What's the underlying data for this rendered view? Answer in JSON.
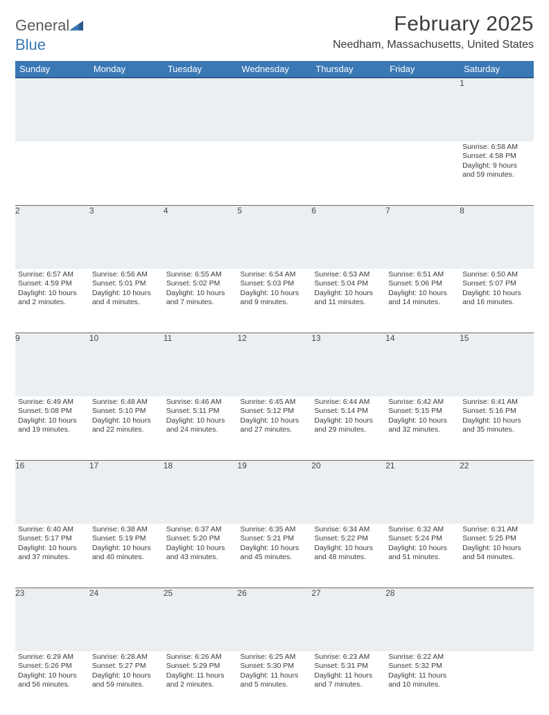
{
  "logo": {
    "general": "General",
    "blue": "Blue"
  },
  "title": "February 2025",
  "location": "Needham, Massachusetts, United States",
  "colors": {
    "header_bg": "#3a78b5",
    "header_text": "#ffffff",
    "daynum_bg": "#eceff1",
    "border": "#6a6a6a",
    "body_bg": "#ffffff",
    "text": "#3a3a3a"
  },
  "weekdays": [
    "Sunday",
    "Monday",
    "Tuesday",
    "Wednesday",
    "Thursday",
    "Friday",
    "Saturday"
  ],
  "weeks": [
    [
      null,
      null,
      null,
      null,
      null,
      null,
      {
        "n": "1",
        "sr": "6:58 AM",
        "ss": "4:58 PM",
        "dl": "9 hours and 59 minutes."
      }
    ],
    [
      {
        "n": "2",
        "sr": "6:57 AM",
        "ss": "4:59 PM",
        "dl": "10 hours and 2 minutes."
      },
      {
        "n": "3",
        "sr": "6:56 AM",
        "ss": "5:01 PM",
        "dl": "10 hours and 4 minutes."
      },
      {
        "n": "4",
        "sr": "6:55 AM",
        "ss": "5:02 PM",
        "dl": "10 hours and 7 minutes."
      },
      {
        "n": "5",
        "sr": "6:54 AM",
        "ss": "5:03 PM",
        "dl": "10 hours and 9 minutes."
      },
      {
        "n": "6",
        "sr": "6:53 AM",
        "ss": "5:04 PM",
        "dl": "10 hours and 11 minutes."
      },
      {
        "n": "7",
        "sr": "6:51 AM",
        "ss": "5:06 PM",
        "dl": "10 hours and 14 minutes."
      },
      {
        "n": "8",
        "sr": "6:50 AM",
        "ss": "5:07 PM",
        "dl": "10 hours and 16 minutes."
      }
    ],
    [
      {
        "n": "9",
        "sr": "6:49 AM",
        "ss": "5:08 PM",
        "dl": "10 hours and 19 minutes."
      },
      {
        "n": "10",
        "sr": "6:48 AM",
        "ss": "5:10 PM",
        "dl": "10 hours and 22 minutes."
      },
      {
        "n": "11",
        "sr": "6:46 AM",
        "ss": "5:11 PM",
        "dl": "10 hours and 24 minutes."
      },
      {
        "n": "12",
        "sr": "6:45 AM",
        "ss": "5:12 PM",
        "dl": "10 hours and 27 minutes."
      },
      {
        "n": "13",
        "sr": "6:44 AM",
        "ss": "5:14 PM",
        "dl": "10 hours and 29 minutes."
      },
      {
        "n": "14",
        "sr": "6:42 AM",
        "ss": "5:15 PM",
        "dl": "10 hours and 32 minutes."
      },
      {
        "n": "15",
        "sr": "6:41 AM",
        "ss": "5:16 PM",
        "dl": "10 hours and 35 minutes."
      }
    ],
    [
      {
        "n": "16",
        "sr": "6:40 AM",
        "ss": "5:17 PM",
        "dl": "10 hours and 37 minutes."
      },
      {
        "n": "17",
        "sr": "6:38 AM",
        "ss": "5:19 PM",
        "dl": "10 hours and 40 minutes."
      },
      {
        "n": "18",
        "sr": "6:37 AM",
        "ss": "5:20 PM",
        "dl": "10 hours and 43 minutes."
      },
      {
        "n": "19",
        "sr": "6:35 AM",
        "ss": "5:21 PM",
        "dl": "10 hours and 45 minutes."
      },
      {
        "n": "20",
        "sr": "6:34 AM",
        "ss": "5:22 PM",
        "dl": "10 hours and 48 minutes."
      },
      {
        "n": "21",
        "sr": "6:32 AM",
        "ss": "5:24 PM",
        "dl": "10 hours and 51 minutes."
      },
      {
        "n": "22",
        "sr": "6:31 AM",
        "ss": "5:25 PM",
        "dl": "10 hours and 54 minutes."
      }
    ],
    [
      {
        "n": "23",
        "sr": "6:29 AM",
        "ss": "5:26 PM",
        "dl": "10 hours and 56 minutes."
      },
      {
        "n": "24",
        "sr": "6:28 AM",
        "ss": "5:27 PM",
        "dl": "10 hours and 59 minutes."
      },
      {
        "n": "25",
        "sr": "6:26 AM",
        "ss": "5:29 PM",
        "dl": "11 hours and 2 minutes."
      },
      {
        "n": "26",
        "sr": "6:25 AM",
        "ss": "5:30 PM",
        "dl": "11 hours and 5 minutes."
      },
      {
        "n": "27",
        "sr": "6:23 AM",
        "ss": "5:31 PM",
        "dl": "11 hours and 7 minutes."
      },
      {
        "n": "28",
        "sr": "6:22 AM",
        "ss": "5:32 PM",
        "dl": "11 hours and 10 minutes."
      },
      null
    ]
  ],
  "labels": {
    "sunrise": "Sunrise:",
    "sunset": "Sunset:",
    "daylight": "Daylight:"
  }
}
